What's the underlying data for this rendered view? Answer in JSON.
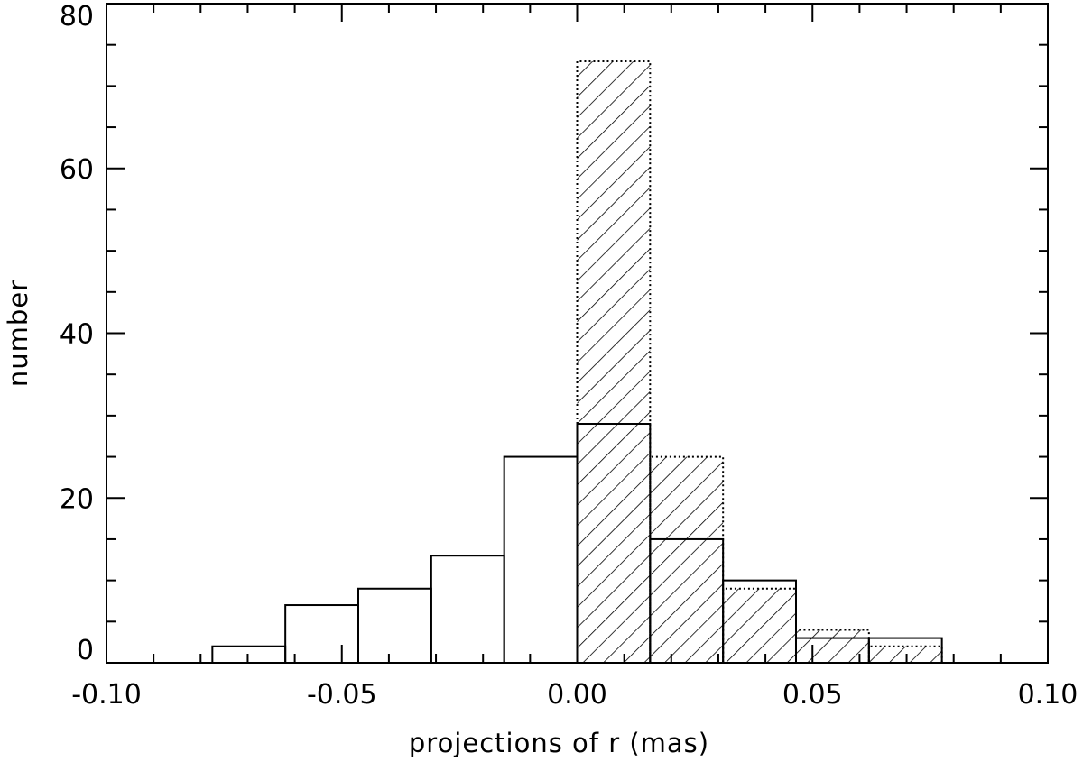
{
  "chart_data": {
    "type": "bar",
    "title": "",
    "xlabel": "projections of r (mas)",
    "ylabel": "number",
    "xlim": [
      -0.1,
      0.1
    ],
    "ylim": [
      0,
      80
    ],
    "x_ticks": [
      "-0.10",
      "-0.05",
      "0.00",
      "0.05",
      "0.10"
    ],
    "x_tick_values": [
      -0.1,
      -0.05,
      0.0,
      0.05,
      0.1
    ],
    "y_ticks": [
      "0",
      "20",
      "40",
      "60",
      "80"
    ],
    "y_tick_values": [
      0,
      20,
      40,
      60,
      80
    ],
    "grid": false,
    "series": [
      {
        "style": "solid outline, unfilled",
        "bins": [
          {
            "x0": -0.0775,
            "x1": -0.062,
            "value": 2
          },
          {
            "x0": -0.062,
            "x1": -0.0465,
            "value": 7
          },
          {
            "x0": -0.0465,
            "x1": -0.031,
            "value": 9
          },
          {
            "x0": -0.031,
            "x1": -0.0155,
            "value": 13
          },
          {
            "x0": -0.0155,
            "x1": 0.0,
            "value": 25
          },
          {
            "x0": 0.0,
            "x1": 0.0155,
            "value": 29
          },
          {
            "x0": 0.0155,
            "x1": 0.031,
            "value": 15
          },
          {
            "x0": 0.031,
            "x1": 0.0465,
            "value": 10
          },
          {
            "x0": 0.0465,
            "x1": 0.062,
            "value": 3
          },
          {
            "x0": 0.062,
            "x1": 0.0775,
            "value": 3
          }
        ]
      },
      {
        "style": "dotted outline, hatched",
        "bins": [
          {
            "x0": 0.0,
            "x1": 0.0155,
            "value": 73
          },
          {
            "x0": 0.0155,
            "x1": 0.031,
            "value": 25
          },
          {
            "x0": 0.031,
            "x1": 0.0465,
            "value": 9
          },
          {
            "x0": 0.0465,
            "x1": 0.062,
            "value": 4
          },
          {
            "x0": 0.062,
            "x1": 0.0775,
            "value": 2
          }
        ]
      }
    ]
  }
}
